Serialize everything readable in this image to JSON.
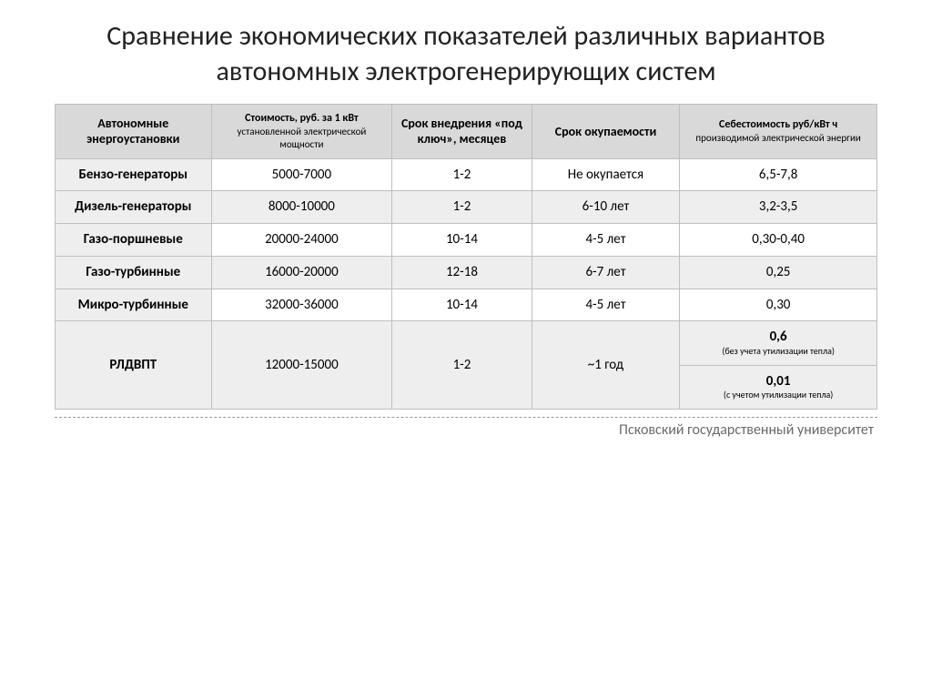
{
  "title": "Сравнение экономических показателей различных вариантов автономных электрогенерирующих систем",
  "footer": "Псковский государственный университет",
  "table": {
    "columns": [
      {
        "label": "Автономные энергоустановки"
      },
      {
        "label": "Стоимость, руб. за 1 кВт",
        "sub": "установленной электрической мощности"
      },
      {
        "label": "Срок внедрения «под ключ», месяцев"
      },
      {
        "label": "Срок окупаемости"
      },
      {
        "label": "Себестоимость руб/кВт ч",
        "sub": "производимой электрической энергии"
      }
    ],
    "rows": [
      {
        "name": "Бензо-генераторы",
        "cost": "5000-7000",
        "impl": "1-2",
        "payback": "Не окупается",
        "unitcost": "6,5-7,8",
        "alt": false
      },
      {
        "name": "Дизель-генераторы",
        "cost": "8000-10000",
        "impl": "1-2",
        "payback": "6-10 лет",
        "unitcost": "3,2-3,5",
        "alt": true
      },
      {
        "name": "Газо-поршневые",
        "cost": "20000-24000",
        "impl": "10-14",
        "payback": "4-5 лет",
        "unitcost": "0,30-0,40",
        "alt": false
      },
      {
        "name": "Газо-турбинные",
        "cost": "16000-20000",
        "impl": "12-18",
        "payback": "6-7 лет",
        "unitcost": "0,25",
        "alt": true
      },
      {
        "name": "Микро-турбинные",
        "cost": "32000-36000",
        "impl": "10-14",
        "payback": "4-5 лет",
        "unitcost": "0,30",
        "alt": false
      }
    ],
    "lastRow": {
      "name": "РЛДВПТ",
      "cost": "12000-15000",
      "impl": "1-2",
      "payback": "~1 год",
      "unitcost_a": "0,6",
      "unitcost_a_note": "(без учета утилизации тепла)",
      "unitcost_b": "0,01",
      "unitcost_b_note": "(с учетом утилизации тепла)"
    },
    "colors": {
      "header_bg": "#d9d9d9",
      "rowhead_bg": "#eeeeee",
      "alt_bg": "#eeeeee",
      "border": "#bfbfbf",
      "text": "#000000",
      "footer_text": "#6a6a6a"
    },
    "fonts": {
      "title_pt": 30,
      "header_pt": 14,
      "header_sub_pt": 11,
      "cell_pt": 15,
      "note_sub_pt": 10,
      "footer_pt": 16
    },
    "column_widths_pct": [
      19,
      22,
      17,
      18,
      24
    ]
  }
}
